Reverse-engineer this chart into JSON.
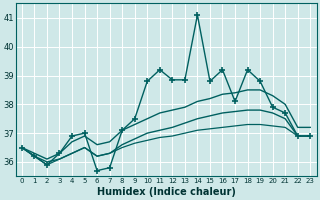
{
  "xlabel": "Humidex (Indice chaleur)",
  "xlim": [
    -0.5,
    23.5
  ],
  "ylim": [
    35.5,
    41.5
  ],
  "yticks": [
    36,
    37,
    38,
    39,
    40,
    41
  ],
  "xticks": [
    0,
    1,
    2,
    3,
    4,
    5,
    6,
    7,
    8,
    9,
    10,
    11,
    12,
    13,
    14,
    15,
    16,
    17,
    18,
    19,
    20,
    21,
    22,
    23
  ],
  "bg_color": "#cfe8e8",
  "grid_color": "#b8d8d8",
  "line_color": "#006060",
  "series": [
    {
      "x": [
        0,
        1,
        2,
        3,
        4,
        5,
        6,
        7,
        8,
        9,
        10,
        11,
        12,
        13,
        14,
        15,
        16,
        17,
        18,
        19,
        20,
        21,
        22,
        23
      ],
      "y": [
        36.5,
        36.2,
        35.9,
        36.3,
        36.9,
        37.0,
        35.7,
        35.8,
        37.1,
        37.5,
        38.8,
        39.2,
        38.85,
        38.85,
        41.1,
        38.8,
        39.2,
        38.1,
        39.2,
        38.8,
        37.9,
        37.7,
        36.9,
        36.9
      ],
      "marker": "+",
      "markersize": 4,
      "linewidth": 1.0,
      "zorder": 5
    },
    {
      "x": [
        0,
        1,
        2,
        3,
        4,
        5,
        6,
        7,
        8,
        9,
        10,
        11,
        12,
        13,
        14,
        15,
        16,
        17,
        18,
        19,
        20,
        21,
        22,
        23
      ],
      "y": [
        36.5,
        36.3,
        36.1,
        36.3,
        36.7,
        36.9,
        36.6,
        36.7,
        37.1,
        37.3,
        37.5,
        37.7,
        37.8,
        37.9,
        38.1,
        38.2,
        38.35,
        38.4,
        38.5,
        38.5,
        38.3,
        38.0,
        37.2,
        37.2
      ],
      "marker": null,
      "markersize": 0,
      "linewidth": 1.0,
      "zorder": 3
    },
    {
      "x": [
        0,
        1,
        2,
        3,
        4,
        5,
        6,
        7,
        8,
        9,
        10,
        11,
        12,
        13,
        14,
        15,
        16,
        17,
        18,
        19,
        20,
        21,
        22,
        23
      ],
      "y": [
        36.5,
        36.2,
        36.0,
        36.1,
        36.3,
        36.5,
        36.2,
        36.3,
        36.6,
        36.8,
        37.0,
        37.1,
        37.2,
        37.35,
        37.5,
        37.6,
        37.7,
        37.75,
        37.8,
        37.8,
        37.7,
        37.5,
        36.9,
        36.9
      ],
      "marker": null,
      "markersize": 0,
      "linewidth": 1.0,
      "zorder": 3
    },
    {
      "x": [
        0,
        1,
        2,
        3,
        4,
        5,
        6,
        7,
        8,
        9,
        10,
        11,
        12,
        13,
        14,
        15,
        16,
        17,
        18,
        19,
        20,
        21,
        22,
        23
      ],
      "y": [
        36.5,
        36.2,
        35.9,
        36.1,
        36.3,
        36.5,
        36.2,
        36.3,
        36.5,
        36.65,
        36.75,
        36.85,
        36.9,
        37.0,
        37.1,
        37.15,
        37.2,
        37.25,
        37.3,
        37.3,
        37.25,
        37.2,
        36.9,
        36.9
      ],
      "marker": null,
      "markersize": 0,
      "linewidth": 0.9,
      "zorder": 2
    }
  ]
}
